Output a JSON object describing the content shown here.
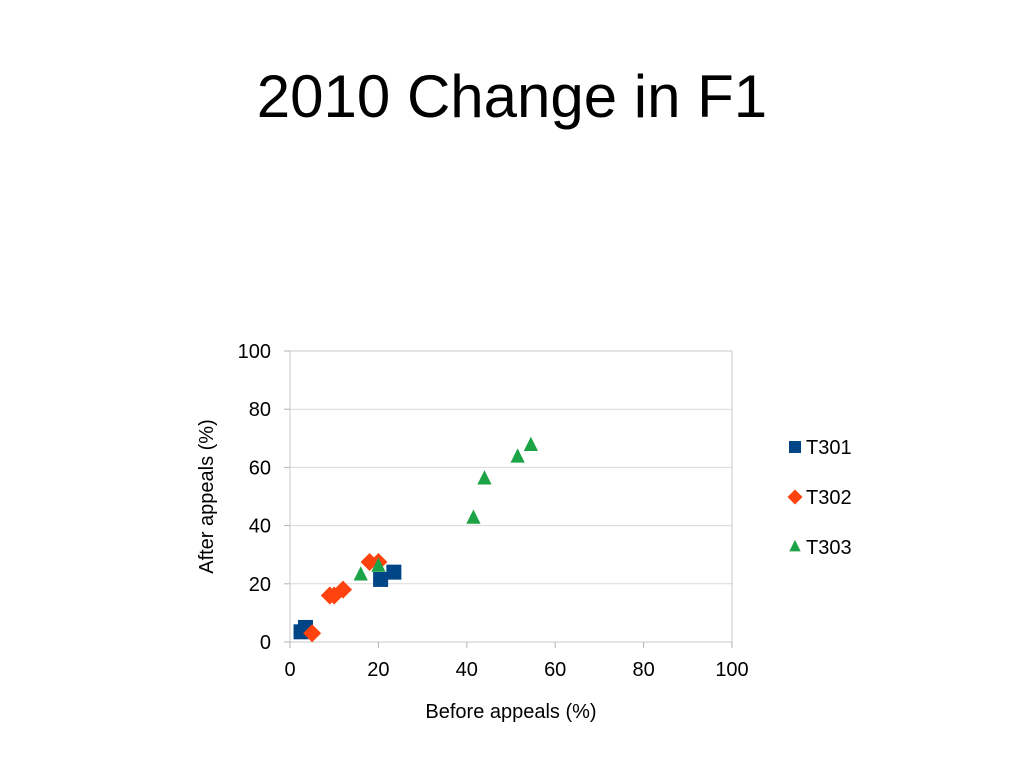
{
  "slide": {
    "title": "2010 Change in F1"
  },
  "chart_data": {
    "type": "scatter",
    "xlabel": "Before appeals (%)",
    "ylabel": "After appeals (%)",
    "xlim": [
      0,
      100
    ],
    "ylim": [
      0,
      100
    ],
    "xticks": [
      0,
      20,
      40,
      60,
      80,
      100
    ],
    "yticks": [
      0,
      20,
      40,
      60,
      80,
      100
    ],
    "grid": "horizontal",
    "legend_position": "right",
    "series": [
      {
        "name": "T301",
        "marker": "square",
        "color": "#004586",
        "points": [
          [
            3.5,
            5
          ],
          [
            2.5,
            3.5
          ],
          [
            20.5,
            21.5
          ],
          [
            23.5,
            24
          ]
        ]
      },
      {
        "name": "T302",
        "marker": "diamond",
        "color": "#ff420e",
        "points": [
          [
            5,
            3
          ],
          [
            9,
            16
          ],
          [
            10,
            16
          ],
          [
            12,
            18
          ],
          [
            18,
            27.5
          ],
          [
            20,
            27.5
          ]
        ]
      },
      {
        "name": "T303",
        "marker": "triangle",
        "color": "#1ba345",
        "points": [
          [
            16,
            23
          ],
          [
            20,
            26
          ],
          [
            41.5,
            42.5
          ],
          [
            44,
            56
          ],
          [
            51.5,
            63.5
          ],
          [
            54.5,
            67.5
          ]
        ]
      }
    ]
  }
}
